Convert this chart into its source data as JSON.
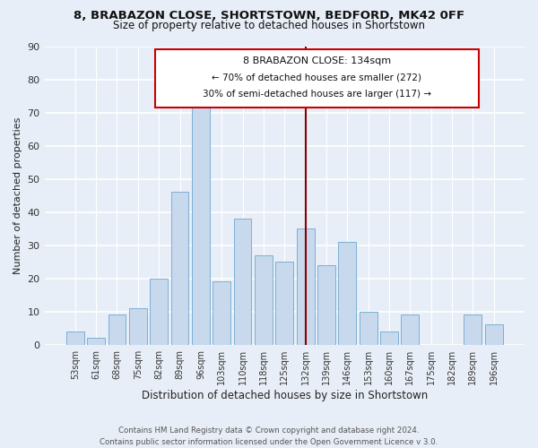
{
  "title": "8, BRABAZON CLOSE, SHORTSTOWN, BEDFORD, MK42 0FF",
  "subtitle": "Size of property relative to detached houses in Shortstown",
  "xlabel": "Distribution of detached houses by size in Shortstown",
  "ylabel": "Number of detached properties",
  "footer_line1": "Contains HM Land Registry data © Crown copyright and database right 2024.",
  "footer_line2": "Contains public sector information licensed under the Open Government Licence v 3.0.",
  "bin_labels": [
    "53sqm",
    "61sqm",
    "68sqm",
    "75sqm",
    "82sqm",
    "89sqm",
    "96sqm",
    "103sqm",
    "110sqm",
    "118sqm",
    "125sqm",
    "132sqm",
    "139sqm",
    "146sqm",
    "153sqm",
    "160sqm",
    "167sqm",
    "175sqm",
    "182sqm",
    "189sqm",
    "196sqm"
  ],
  "bar_values": [
    4,
    2,
    9,
    11,
    20,
    46,
    73,
    19,
    38,
    27,
    25,
    35,
    24,
    31,
    10,
    4,
    9,
    0,
    0,
    9,
    6
  ],
  "bar_color": "#c9d9ed",
  "bar_edge_color": "#7bafd4",
  "highlight_x_label": "132sqm",
  "highlight_line_color": "#880000",
  "annotation_box_edge_color": "#cc0000",
  "annotation_title": "8 BRABAZON CLOSE: 134sqm",
  "annotation_line1": "← 70% of detached houses are smaller (272)",
  "annotation_line2": "30% of semi-detached houses are larger (117) →",
  "ylim": [
    0,
    90
  ],
  "yticks": [
    0,
    10,
    20,
    30,
    40,
    50,
    60,
    70,
    80,
    90
  ],
  "bg_color": "#e8eef7",
  "plot_bg_color": "#e8eef7"
}
